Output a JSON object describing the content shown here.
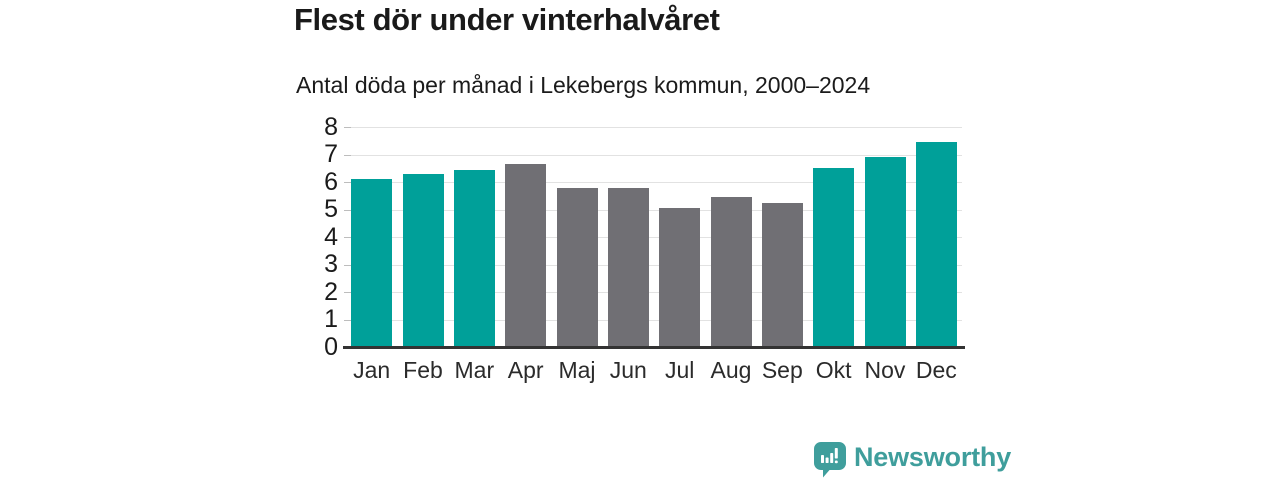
{
  "header": {
    "title": "Flest dör under vinterhalvåret",
    "subtitle": "Antal döda per månad i Lekebergs kommun, 2000–2024"
  },
  "chart_data": {
    "type": "bar",
    "title": "Flest dör under vinterhalvåret",
    "subtitle": "Antal döda per månad i Lekebergs kommun, 2000–2024",
    "categories": [
      "Jan",
      "Feb",
      "Mar",
      "Apr",
      "Maj",
      "Jun",
      "Jul",
      "Aug",
      "Sep",
      "Okt",
      "Nov",
      "Dec"
    ],
    "values": [
      6.1,
      6.3,
      6.45,
      6.65,
      5.8,
      5.8,
      5.05,
      5.45,
      5.25,
      6.5,
      6.9,
      7.45
    ],
    "highlighted": [
      true,
      true,
      true,
      false,
      false,
      false,
      false,
      false,
      false,
      true,
      true,
      true
    ],
    "xlabel": "",
    "ylabel": "",
    "ylim": [
      0,
      8
    ],
    "yticks": [
      0,
      1,
      2,
      3,
      4,
      5,
      6,
      7,
      8
    ],
    "grid": true,
    "legend_position": "none",
    "colors": {
      "highlight": "#00a099",
      "default": "#706f74",
      "gridline": "#e2e2e2",
      "axis": "#333333",
      "text": "#1b1b1b"
    }
  },
  "footer": {
    "brand": "Newsworthy",
    "brand_color": "#3f9e9c",
    "logo_icon": "speech-bubble-bar-chart"
  }
}
